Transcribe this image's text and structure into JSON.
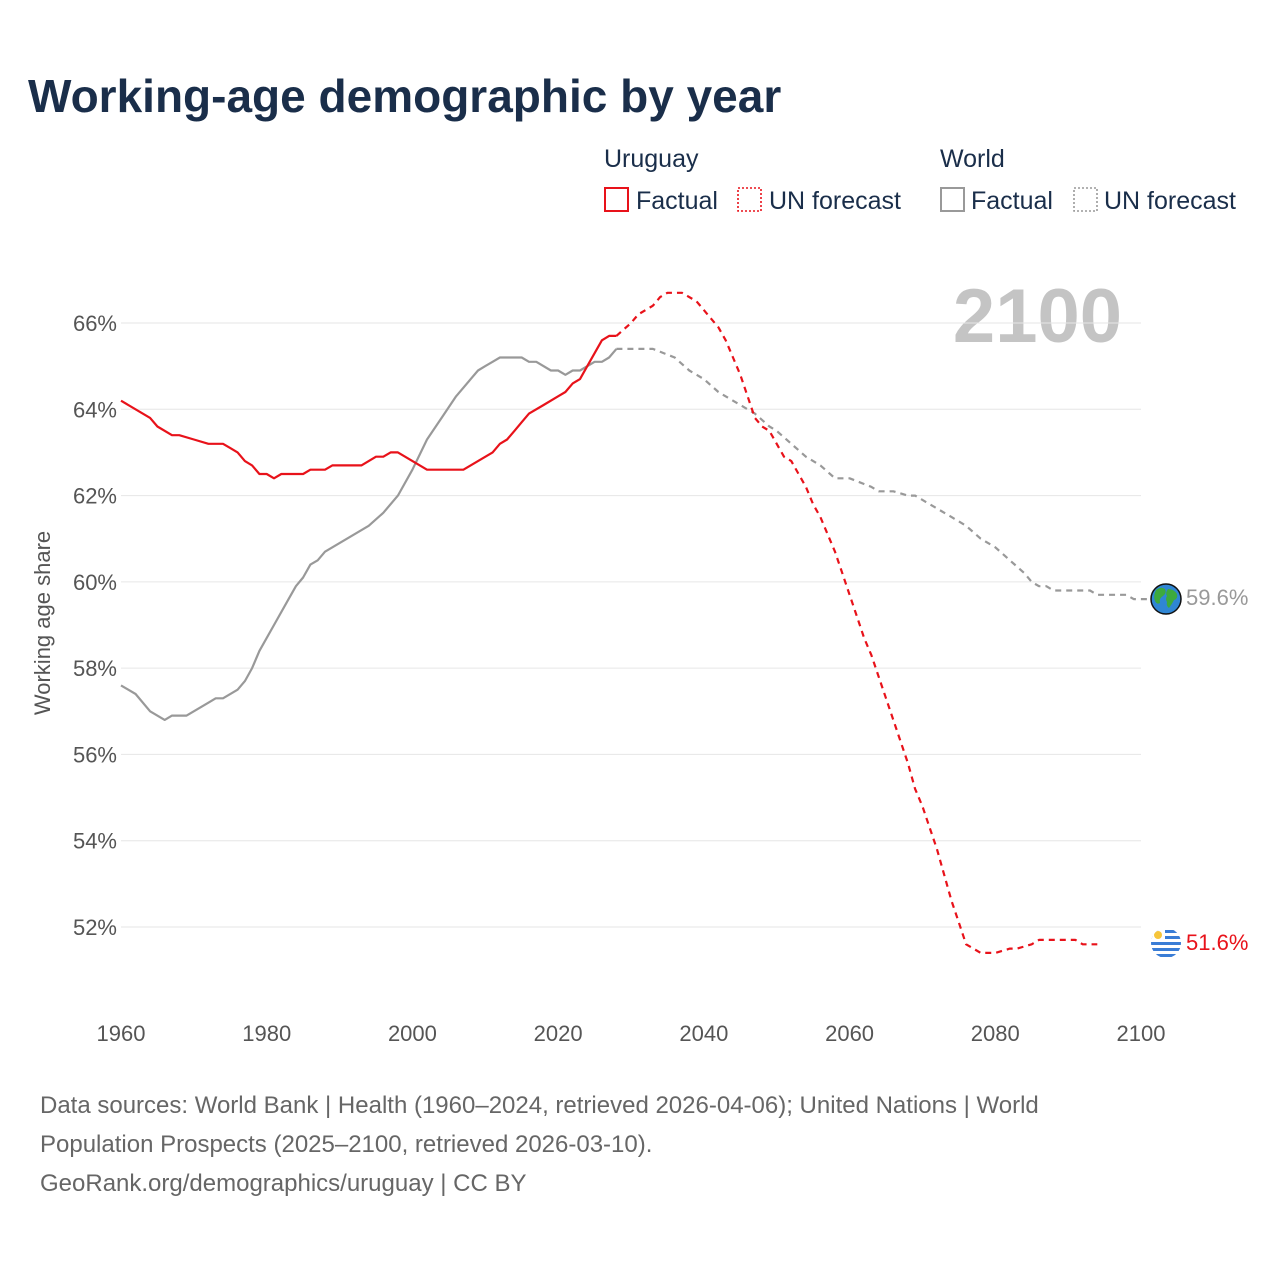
{
  "title": "Working-age demographic by year",
  "legend": {
    "groups": [
      {
        "name": "Uruguay",
        "color": "#e8121a",
        "items": [
          {
            "label": "Factual",
            "style": "solid"
          },
          {
            "label": "UN forecast",
            "style": "dotted"
          }
        ]
      },
      {
        "name": "World",
        "color": "#999999",
        "items": [
          {
            "label": "Factual",
            "style": "solid"
          },
          {
            "label": "UN forecast",
            "style": "dotted"
          }
        ]
      }
    ]
  },
  "watermark_year": "2100",
  "end_labels": {
    "world": "59.6%",
    "uruguay": "51.6%"
  },
  "footer": {
    "line1": "Data sources: World Bank | Health (1960–2024, retrieved 2026-04-06); United Nations | World",
    "line2": "Population Prospects (2025–2100, retrieved 2026-03-10).",
    "line3": "GeoRank.org/demographics/uruguay | CC BY"
  },
  "chart_data": {
    "type": "line",
    "title": "Working-age demographic by year",
    "xlabel": "",
    "ylabel": "Working age share",
    "xlim": [
      1960,
      2102
    ],
    "ylim": [
      50.8,
      67.2
    ],
    "x_ticks": [
      1960,
      1980,
      2000,
      2020,
      2040,
      2060,
      2080,
      2100
    ],
    "x_tick_labels": [
      "1960",
      "1980",
      "2000",
      "2020",
      "2040",
      "2060",
      "2080",
      "2100"
    ],
    "y_ticks": [
      52,
      54,
      56,
      58,
      60,
      62,
      64,
      66
    ],
    "y_tick_labels": [
      "52%",
      "54%",
      "56%",
      "58%",
      "60%",
      "62%",
      "64%",
      "66%"
    ],
    "grid": true,
    "legend_position": "top-right",
    "series": [
      {
        "name": "Uruguay",
        "segment": "Factual",
        "color": "#e8121a",
        "dash": "solid",
        "points": [
          [
            1960,
            64.2
          ],
          [
            1964,
            63.8
          ],
          [
            1965,
            63.6
          ],
          [
            1967,
            63.4
          ],
          [
            1968,
            63.4
          ],
          [
            1970,
            63.3
          ],
          [
            1972,
            63.2
          ],
          [
            1974,
            63.2
          ],
          [
            1975,
            63.1
          ],
          [
            1976,
            63.0
          ],
          [
            1977,
            62.8
          ],
          [
            1978,
            62.7
          ],
          [
            1979,
            62.5
          ],
          [
            1980,
            62.5
          ],
          [
            1981,
            62.4
          ],
          [
            1982,
            62.5
          ],
          [
            1985,
            62.5
          ],
          [
            1986,
            62.6
          ],
          [
            1988,
            62.6
          ],
          [
            1989,
            62.7
          ],
          [
            1993,
            62.7
          ],
          [
            1995,
            62.9
          ],
          [
            1996,
            62.9
          ],
          [
            1997,
            63.0
          ],
          [
            1998,
            63.0
          ],
          [
            1999,
            62.9
          ],
          [
            2002,
            62.6
          ],
          [
            2007,
            62.6
          ],
          [
            2009,
            62.8
          ],
          [
            2011,
            63.0
          ],
          [
            2012,
            63.2
          ],
          [
            2013,
            63.3
          ],
          [
            2014,
            63.5
          ],
          [
            2015,
            63.7
          ],
          [
            2016,
            63.9
          ],
          [
            2018,
            64.1
          ],
          [
            2020,
            64.3
          ],
          [
            2021,
            64.4
          ],
          [
            2022,
            64.6
          ],
          [
            2023,
            64.7
          ],
          [
            2024,
            65.0
          ],
          [
            2025,
            65.3
          ],
          [
            2026,
            65.6
          ],
          [
            2027,
            65.7
          ],
          [
            2028,
            65.7
          ]
        ]
      },
      {
        "name": "Uruguay",
        "segment": "UN forecast",
        "color": "#e8121a",
        "dash": "dashed",
        "points": [
          [
            2028,
            65.7
          ],
          [
            2030,
            66.0
          ],
          [
            2031,
            66.2
          ],
          [
            2033,
            66.4
          ],
          [
            2034,
            66.6
          ],
          [
            2035,
            66.7
          ],
          [
            2037,
            66.7
          ],
          [
            2039,
            66.5
          ],
          [
            2041,
            66.1
          ],
          [
            2042,
            65.9
          ],
          [
            2043,
            65.6
          ],
          [
            2044,
            65.2
          ],
          [
            2045,
            64.8
          ],
          [
            2046,
            64.3
          ],
          [
            2047,
            63.8
          ],
          [
            2048,
            63.6
          ],
          [
            2049,
            63.5
          ],
          [
            2050,
            63.2
          ],
          [
            2051,
            62.9
          ],
          [
            2052,
            62.8
          ],
          [
            2053,
            62.5
          ],
          [
            2054,
            62.2
          ],
          [
            2055,
            61.8
          ],
          [
            2056,
            61.5
          ],
          [
            2057,
            61.1
          ],
          [
            2058,
            60.7
          ],
          [
            2059,
            60.2
          ],
          [
            2060,
            59.7
          ],
          [
            2061,
            59.2
          ],
          [
            2062,
            58.7
          ],
          [
            2063,
            58.3
          ],
          [
            2064,
            57.8
          ],
          [
            2065,
            57.3
          ],
          [
            2066,
            56.8
          ],
          [
            2067,
            56.3
          ],
          [
            2068,
            55.8
          ],
          [
            2069,
            55.2
          ],
          [
            2070,
            54.8
          ],
          [
            2071,
            54.3
          ],
          [
            2072,
            53.8
          ],
          [
            2073,
            53.2
          ],
          [
            2074,
            52.6
          ],
          [
            2075,
            52.1
          ],
          [
            2076,
            51.6
          ],
          [
            2077,
            51.5
          ],
          [
            2078,
            51.4
          ],
          [
            2080,
            51.4
          ],
          [
            2082,
            51.5
          ],
          [
            2083,
            51.5
          ],
          [
            2085,
            51.6
          ],
          [
            2086,
            51.7
          ],
          [
            2087,
            51.7
          ],
          [
            2088,
            51.7
          ],
          [
            2090,
            51.7
          ],
          [
            2091,
            51.7
          ],
          [
            2092,
            51.6
          ],
          [
            2093,
            51.6
          ],
          [
            2094,
            51.6
          ]
        ]
      },
      {
        "name": "World",
        "segment": "Factual",
        "color": "#999999",
        "dash": "solid",
        "points": [
          [
            1960,
            57.6
          ],
          [
            1961,
            57.5
          ],
          [
            1962,
            57.4
          ],
          [
            1964,
            57.0
          ],
          [
            1966,
            56.8
          ],
          [
            1967,
            56.9
          ],
          [
            1969,
            56.9
          ],
          [
            1972,
            57.2
          ],
          [
            1973,
            57.3
          ],
          [
            1974,
            57.3
          ],
          [
            1976,
            57.5
          ],
          [
            1977,
            57.7
          ],
          [
            1978,
            58.0
          ],
          [
            1979,
            58.4
          ],
          [
            1981,
            59.0
          ],
          [
            1983,
            59.6
          ],
          [
            1984,
            59.9
          ],
          [
            1985,
            60.1
          ],
          [
            1986,
            60.4
          ],
          [
            1987,
            60.5
          ],
          [
            1988,
            60.7
          ],
          [
            1994,
            61.3
          ],
          [
            1996,
            61.6
          ],
          [
            1998,
            62.0
          ],
          [
            2000,
            62.6
          ],
          [
            2002,
            63.3
          ],
          [
            2004,
            63.8
          ],
          [
            2006,
            64.3
          ],
          [
            2008,
            64.7
          ],
          [
            2009,
            64.9
          ],
          [
            2010,
            65.0
          ],
          [
            2011,
            65.1
          ],
          [
            2012,
            65.2
          ],
          [
            2015,
            65.2
          ],
          [
            2016,
            65.1
          ],
          [
            2017,
            65.1
          ],
          [
            2019,
            64.9
          ],
          [
            2020,
            64.9
          ],
          [
            2021,
            64.8
          ],
          [
            2022,
            64.9
          ],
          [
            2023,
            64.9
          ],
          [
            2025,
            65.1
          ],
          [
            2026,
            65.1
          ],
          [
            2027,
            65.2
          ],
          [
            2028,
            65.4
          ]
        ]
      },
      {
        "name": "World",
        "segment": "UN forecast",
        "color": "#999999",
        "dash": "dashed",
        "points": [
          [
            2028,
            65.4
          ],
          [
            2033,
            65.4
          ],
          [
            2036,
            65.2
          ],
          [
            2038,
            64.9
          ],
          [
            2040,
            64.7
          ],
          [
            2042,
            64.4
          ],
          [
            2044,
            64.2
          ],
          [
            2047,
            63.9
          ],
          [
            2049,
            63.6
          ],
          [
            2050,
            63.5
          ],
          [
            2052,
            63.2
          ],
          [
            2054,
            62.9
          ],
          [
            2056,
            62.7
          ],
          [
            2058,
            62.4
          ],
          [
            2060,
            62.4
          ],
          [
            2063,
            62.2
          ],
          [
            2064,
            62.1
          ],
          [
            2066,
            62.1
          ],
          [
            2068,
            62.0
          ],
          [
            2069,
            62.0
          ],
          [
            2071,
            61.8
          ],
          [
            2074,
            61.5
          ],
          [
            2076,
            61.3
          ],
          [
            2078,
            61.0
          ],
          [
            2080,
            60.8
          ],
          [
            2082,
            60.5
          ],
          [
            2084,
            60.2
          ],
          [
            2085,
            60.0
          ],
          [
            2086,
            59.9
          ],
          [
            2087,
            59.9
          ],
          [
            2088,
            59.8
          ],
          [
            2093,
            59.8
          ],
          [
            2094,
            59.7
          ],
          [
            2097,
            59.7
          ],
          [
            2098,
            59.7
          ],
          [
            2099,
            59.6
          ],
          [
            2102,
            59.6
          ]
        ]
      }
    ]
  }
}
